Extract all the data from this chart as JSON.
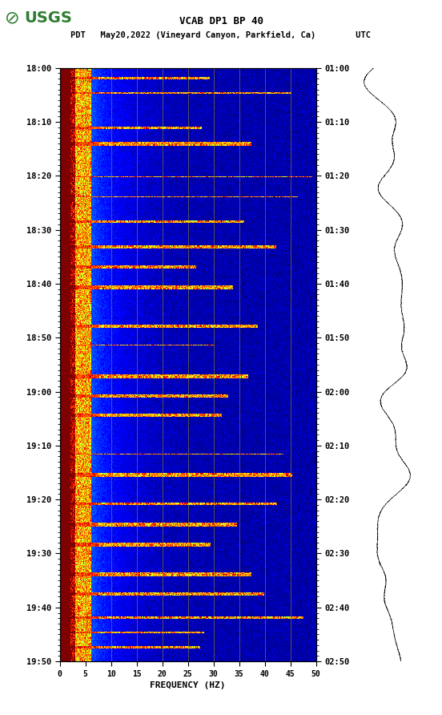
{
  "title_line1": "VCAB DP1 BP 40",
  "title_line2_left": "PDT   May20,2022 (Vineyard Canyon, Parkfield, Ca)        UTC",
  "xlabel": "FREQUENCY (HZ)",
  "freq_min": 0,
  "freq_max": 50,
  "freq_ticks": [
    0,
    5,
    10,
    15,
    20,
    25,
    30,
    35,
    40,
    45,
    50
  ],
  "time_ticks_left": [
    "18:00",
    "18:10",
    "18:20",
    "18:30",
    "18:40",
    "18:50",
    "19:00",
    "19:10",
    "19:20",
    "19:30",
    "19:40",
    "19:50"
  ],
  "time_ticks_right": [
    "01:00",
    "01:10",
    "01:20",
    "01:30",
    "01:40",
    "01:50",
    "02:00",
    "02:10",
    "02:20",
    "02:30",
    "02:40",
    "02:50"
  ],
  "n_time": 600,
  "n_freq": 300,
  "background_color": "#ffffff",
  "colormap": "jet",
  "vertical_lines_freq": [
    5,
    10,
    15,
    20,
    25,
    30,
    35,
    40,
    45
  ],
  "fig_width": 5.52,
  "fig_height": 8.92,
  "usgs_color": "#2e7d32"
}
